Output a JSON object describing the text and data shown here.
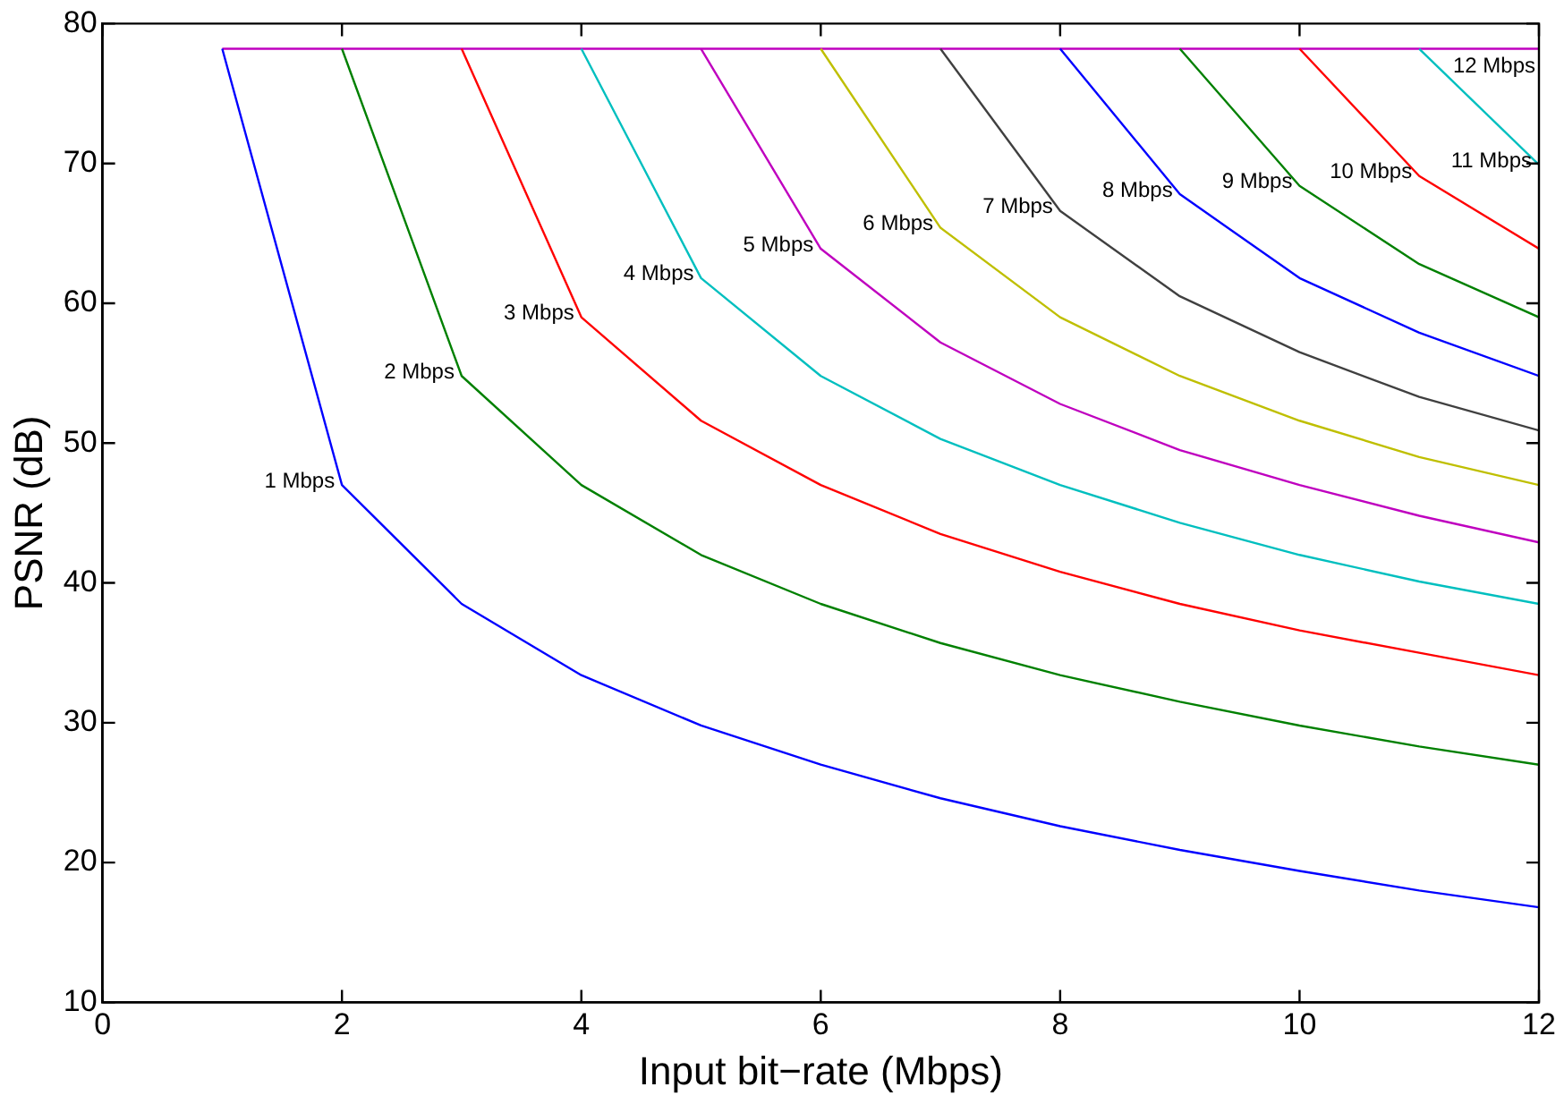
{
  "chart_data": {
    "type": "line",
    "xlabel": "Input bit−rate (Mbps)",
    "ylabel": "PSNR (dB)",
    "x": [
      1,
      2,
      3,
      4,
      5,
      6,
      7,
      8,
      9,
      10,
      11,
      12
    ],
    "xlim": [
      0,
      12
    ],
    "xticks": [
      0,
      2,
      4,
      6,
      8,
      10,
      12
    ],
    "ylim": [
      10,
      80
    ],
    "yticks": [
      10,
      20,
      30,
      40,
      50,
      60,
      70,
      80
    ],
    "marker": "none",
    "line_style": "solid",
    "legend": false,
    "series": [
      {
        "name": "1 Mbps",
        "color": "#0000ff",
        "values": [
          78.2,
          47,
          38.5,
          33.4,
          29.8,
          27.0,
          24.6,
          22.6,
          20.9,
          19.4,
          18.0,
          16.8
        ]
      },
      {
        "name": "2 Mbps",
        "color": "#008000",
        "values": [
          null,
          78.2,
          54.8,
          47,
          42,
          38.5,
          35.7,
          33.4,
          31.5,
          29.8,
          28.3,
          27.0
        ]
      },
      {
        "name": "3 Mbps",
        "color": "#ff0000",
        "values": [
          null,
          null,
          78.2,
          59,
          51.6,
          47,
          43.5,
          40.8,
          38.5,
          36.6,
          35.0,
          33.4
        ]
      },
      {
        "name": "4 Mbps",
        "color": "#00bfbf",
        "values": [
          null,
          null,
          null,
          78.2,
          61.8,
          54.8,
          50.3,
          47,
          44.3,
          42,
          40.1,
          38.5
        ]
      },
      {
        "name": "5 Mbps",
        "color": "#bf00bf",
        "values": [
          null,
          null,
          null,
          null,
          78.2,
          63.9,
          57.2,
          52.8,
          49.5,
          47,
          44.8,
          42.9
        ]
      },
      {
        "name": "6 Mbps",
        "color": "#bfbf00",
        "values": [
          null,
          null,
          null,
          null,
          null,
          78.2,
          65.4,
          59,
          54.8,
          51.6,
          49,
          47
        ]
      },
      {
        "name": "7 Mbps",
        "color": "#404040",
        "values": [
          null,
          null,
          null,
          null,
          null,
          null,
          78.2,
          66.6,
          60.5,
          56.5,
          53.3,
          50.9
        ]
      },
      {
        "name": "8 Mbps",
        "color": "#0000ff",
        "values": [
          null,
          null,
          null,
          null,
          null,
          null,
          null,
          78.2,
          67.8,
          61.8,
          57.9,
          54.8
        ]
      },
      {
        "name": "9 Mbps",
        "color": "#008000",
        "values": [
          null,
          null,
          null,
          null,
          null,
          null,
          null,
          null,
          78.2,
          68.4,
          62.8,
          59
        ]
      },
      {
        "name": "10 Mbps",
        "color": "#ff0000",
        "values": [
          null,
          null,
          null,
          null,
          null,
          null,
          null,
          null,
          null,
          78.2,
          69.1,
          63.9
        ]
      },
      {
        "name": "11 Mbps",
        "color": "#00bfbf",
        "values": [
          null,
          null,
          null,
          null,
          null,
          null,
          null,
          null,
          null,
          null,
          78.2,
          69.9
        ]
      },
      {
        "name": "12 Mbps",
        "color": "#bf00bf",
        "values": [
          78.2,
          78.2,
          78.2,
          78.2,
          78.2,
          78.2,
          78.2,
          78.2,
          78.2,
          78.2,
          78.2,
          78.2
        ]
      }
    ]
  }
}
